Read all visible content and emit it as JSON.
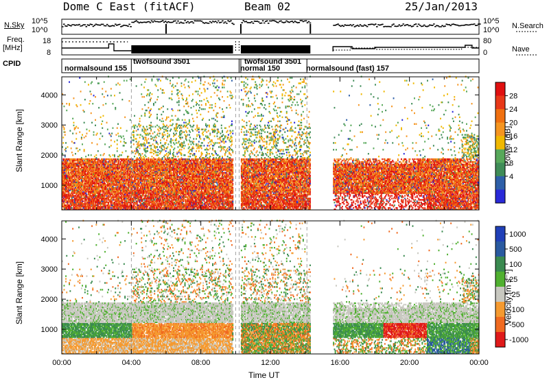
{
  "header": {
    "station": "Dome C East (fitACF)",
    "beam": "Beam 02",
    "date": "25/Jan/2013"
  },
  "colors": {
    "power": [
      "#2a2ad8",
      "#2e5fa8",
      "#3f8c57",
      "#57a85a",
      "#f0b800",
      "#f59520",
      "#f07010",
      "#e83818",
      "#e01010"
    ],
    "velocity": [
      "#e01a1a",
      "#f06a20",
      "#f59a30",
      "#c8c8c0",
      "#50b030",
      "#3a8a50",
      "#2a5aa0",
      "#2040b8"
    ],
    "gsGray": "#c4c4bc"
  },
  "panels": {
    "nsky": {
      "left_label": "N.Sky",
      "right_label": "N.Search",
      "left_ticks": [
        "10^5",
        "10^0"
      ],
      "right_ticks": [
        "10^5",
        "10^0"
      ]
    },
    "freq": {
      "left_label_1": "Freq.",
      "left_label_2": "[MHz]",
      "right_label": "Nave",
      "left_ticks": [
        "18",
        "8"
      ],
      "right_ticks": [
        "80",
        "0"
      ]
    },
    "cpid": {
      "label": "CPID",
      "segments": [
        {
          "name": "normalsound 155",
          "start_hr": 0.0
        },
        {
          "name": "twofsound 3501",
          "start_hr": 4.0
        },
        {
          "name": "normal 150",
          "start_hr": 10.2
        },
        {
          "name": "twofsound 3501",
          "start_hr": 10.3
        },
        {
          "name": "normalsound (fast) 157",
          "start_hr": 14.1
        }
      ]
    }
  },
  "chart_data": [
    {
      "type": "heatmap",
      "title": "Power",
      "ylabel": "Slant Range [km]",
      "xlabel": "",
      "xlim_hours": [
        0,
        24
      ],
      "ylim": [
        180,
        4600
      ],
      "yticks": [
        "4000",
        "3000",
        "2000",
        "1000"
      ],
      "colorbar": {
        "label": "Power [dB]",
        "ticks": [
          "28",
          "24",
          "20",
          "16",
          "12",
          "8",
          "4"
        ]
      }
    },
    {
      "type": "heatmap",
      "title": "Velocity",
      "ylabel": "Slant Range [km]",
      "xlabel": "Time UT",
      "xlim_hours": [
        0,
        24
      ],
      "ylim": [
        180,
        4600
      ],
      "xticks": [
        "00:00",
        "04:00",
        "08:00",
        "12:00",
        "16:00",
        "20:00",
        "00:00"
      ],
      "yticks": [
        "4000",
        "3000",
        "2000",
        "1000"
      ],
      "colorbar": {
        "label": "Velocity [m s⁻¹]",
        "ticks": [
          "1000",
          "500",
          "100",
          "25",
          "-25",
          "-100",
          "-500",
          "-1000"
        ]
      }
    }
  ]
}
